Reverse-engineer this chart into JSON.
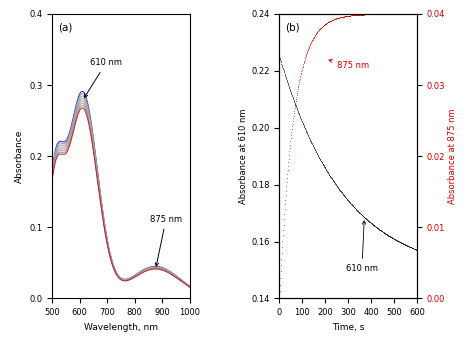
{
  "panel_a": {
    "title": "(a)",
    "xlabel": "Wavelength, nm",
    "ylabel": "Absorbance",
    "xlim": [
      500,
      1000
    ],
    "ylim": [
      0,
      0.4
    ],
    "yticks": [
      0,
      0.1,
      0.2,
      0.3,
      0.4
    ],
    "xticks": [
      500,
      600,
      700,
      800,
      900,
      1000
    ],
    "annotation_610": "610 nm",
    "annotation_875": "875 nm",
    "n_curves": 8
  },
  "panel_b": {
    "title": "(b)",
    "xlabel": "Time, s",
    "ylabel_left": "Absorbance at 610 nm",
    "ylabel_right": "Absorbance at 875 nm",
    "xlim": [
      0,
      600
    ],
    "ylim_left": [
      0.14,
      0.24
    ],
    "ylim_right": [
      0,
      0.04
    ],
    "yticks_left": [
      0.14,
      0.16,
      0.18,
      0.2,
      0.22,
      0.24
    ],
    "yticks_right": [
      0,
      0.01,
      0.02,
      0.03,
      0.04
    ],
    "xticks": [
      0,
      100,
      200,
      300,
      400,
      500,
      600
    ],
    "color_610": "#000000",
    "color_875": "#cc0000",
    "annotation_610": "610 nm",
    "annotation_875": "875 nm"
  }
}
